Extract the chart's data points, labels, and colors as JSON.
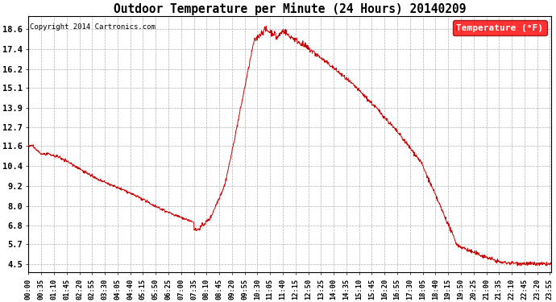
{
  "title": "Outdoor Temperature per Minute (24 Hours) 20140209",
  "copyright_text": "Copyright 2014 Cartronics.com",
  "legend_label": "Temperature (°F)",
  "line_color": "#cc0000",
  "background_color": "#ffffff",
  "grid_color": "#b0b0b0",
  "yticks": [
    4.5,
    5.7,
    6.8,
    8.0,
    9.2,
    10.4,
    11.6,
    12.7,
    13.9,
    15.1,
    16.2,
    17.4,
    18.6
  ],
  "xtick_interval_minutes": 35,
  "total_minutes": 1440,
  "ymin": 4.0,
  "ymax": 19.4
}
